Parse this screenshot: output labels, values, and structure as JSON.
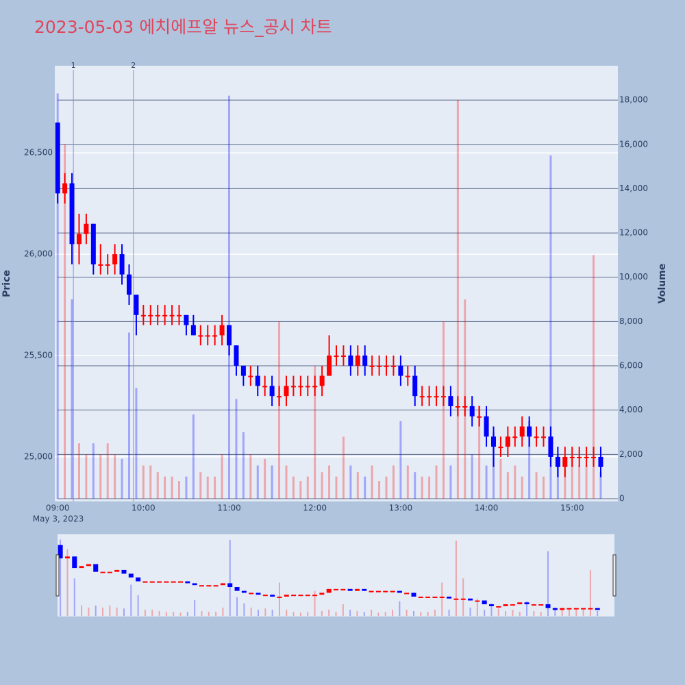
{
  "chart_data": {
    "type": "candlestick",
    "title": "2023-05-03 에치에프알 뉴스_공시 차트",
    "y_title": "Price",
    "y2_title": "Volume",
    "x_date_label": "May 3, 2023",
    "increasing_color": "#ff0000",
    "decreasing_color": "#0000ff",
    "x": [
      "2023-05-03 09:00",
      "2023-05-03 09:05",
      "2023-05-03 09:10",
      "2023-05-03 09:15",
      "2023-05-03 09:20",
      "2023-05-03 09:25",
      "2023-05-03 09:30",
      "2023-05-03 09:35",
      "2023-05-03 09:40",
      "2023-05-03 09:45",
      "2023-05-03 09:50",
      "2023-05-03 09:55",
      "2023-05-03 10:00",
      "2023-05-03 10:05",
      "2023-05-03 10:10",
      "2023-05-03 10:15",
      "2023-05-03 10:20",
      "2023-05-03 10:25",
      "2023-05-03 10:30",
      "2023-05-03 10:35",
      "2023-05-03 10:40",
      "2023-05-03 10:45",
      "2023-05-03 10:50",
      "2023-05-03 10:55",
      "2023-05-03 11:00",
      "2023-05-03 11:05",
      "2023-05-03 11:10",
      "2023-05-03 11:15",
      "2023-05-03 11:20",
      "2023-05-03 11:25",
      "2023-05-03 11:30",
      "2023-05-03 11:35",
      "2023-05-03 11:40",
      "2023-05-03 11:45",
      "2023-05-03 11:50",
      "2023-05-03 11:55",
      "2023-05-03 12:00",
      "2023-05-03 12:05",
      "2023-05-03 12:10",
      "2023-05-03 12:15",
      "2023-05-03 12:20",
      "2023-05-03 12:25",
      "2023-05-03 12:30",
      "2023-05-03 12:35",
      "2023-05-03 12:40",
      "2023-05-03 12:45",
      "2023-05-03 12:50",
      "2023-05-03 12:55",
      "2023-05-03 13:00",
      "2023-05-03 13:05",
      "2023-05-03 13:10",
      "2023-05-03 13:15",
      "2023-05-03 13:20",
      "2023-05-03 13:25",
      "2023-05-03 13:30",
      "2023-05-03 13:35",
      "2023-05-03 13:40",
      "2023-05-03 13:45",
      "2023-05-03 13:50",
      "2023-05-03 13:55",
      "2023-05-03 14:00",
      "2023-05-03 14:05",
      "2023-05-03 14:10",
      "2023-05-03 14:15",
      "2023-05-03 14:20",
      "2023-05-03 14:25",
      "2023-05-03 14:30",
      "2023-05-03 14:35",
      "2023-05-03 14:40",
      "2023-05-03 14:45",
      "2023-05-03 14:50",
      "2023-05-03 14:55",
      "2023-05-03 15:00",
      "2023-05-03 15:05",
      "2023-05-03 15:10",
      "2023-05-03 15:15",
      "2023-05-03 15:20"
    ],
    "open": [
      26650,
      26300,
      26350,
      26050,
      26100,
      26150,
      25950,
      25950,
      25950,
      26000,
      25900,
      25800,
      25700,
      25700,
      25700,
      25700,
      25700,
      25700,
      25700,
      25650,
      25600,
      25600,
      25600,
      25600,
      25650,
      25550,
      25450,
      25400,
      25400,
      25350,
      25350,
      25300,
      25300,
      25350,
      25350,
      25350,
      25350,
      25350,
      25400,
      25500,
      25500,
      25500,
      25450,
      25500,
      25450,
      25450,
      25450,
      25450,
      25450,
      25400,
      25400,
      25300,
      25300,
      25300,
      25300,
      25300,
      25250,
      25250,
      25250,
      25200,
      25200,
      25100,
      25050,
      25050,
      25100,
      25100,
      25150,
      25100,
      25100,
      25100,
      25000,
      24950,
      25000,
      25000,
      25000,
      25000,
      25000
    ],
    "high": [
      26650,
      26400,
      26400,
      26200,
      26200,
      26150,
      26050,
      26000,
      26050,
      26050,
      25950,
      25800,
      25750,
      25750,
      25750,
      25750,
      25750,
      25750,
      25700,
      25700,
      25650,
      25650,
      25650,
      25700,
      25650,
      25550,
      25450,
      25450,
      25450,
      25400,
      25400,
      25350,
      25400,
      25400,
      25400,
      25400,
      25400,
      25450,
      25600,
      25550,
      25550,
      25550,
      25550,
      25550,
      25500,
      25500,
      25500,
      25500,
      25500,
      25450,
      25450,
      25350,
      25350,
      25350,
      25350,
      25350,
      25300,
      25300,
      25300,
      25250,
      25250,
      25150,
      25100,
      25150,
      25150,
      25200,
      25200,
      25150,
      25150,
      25150,
      25050,
      25050,
      25050,
      25050,
      25050,
      25050,
      25050
    ],
    "low": [
      26250,
      26250,
      25950,
      25950,
      26050,
      25900,
      25900,
      25900,
      25900,
      25850,
      25750,
      25600,
      25650,
      25650,
      25650,
      25650,
      25650,
      25650,
      25600,
      25600,
      25550,
      25550,
      25550,
      25550,
      25500,
      25400,
      25350,
      25350,
      25300,
      25300,
      25250,
      25250,
      25250,
      25300,
      25300,
      25300,
      25300,
      25300,
      25400,
      25450,
      25450,
      25400,
      25400,
      25400,
      25400,
      25400,
      25400,
      25400,
      25350,
      25350,
      25250,
      25250,
      25250,
      25250,
      25250,
      25200,
      25200,
      25200,
      25150,
      25150,
      25050,
      24950,
      25000,
      25000,
      25050,
      25050,
      25050,
      25050,
      25050,
      24950,
      24900,
      24900,
      24950,
      24950,
      24950,
      24950,
      24900
    ],
    "close": [
      26300,
      26350,
      26050,
      26100,
      26150,
      25950,
      25950,
      25950,
      26000,
      25900,
      25800,
      25700,
      25700,
      25700,
      25700,
      25700,
      25700,
      25700,
      25650,
      25600,
      25600,
      25600,
      25600,
      25650,
      25550,
      25450,
      25400,
      25400,
      25350,
      25350,
      25300,
      25300,
      25350,
      25350,
      25350,
      25350,
      25350,
      25400,
      25500,
      25500,
      25500,
      25450,
      25500,
      25450,
      25450,
      25450,
      25450,
      25450,
      25400,
      25400,
      25300,
      25300,
      25300,
      25300,
      25300,
      25250,
      25250,
      25250,
      25200,
      25200,
      25100,
      25050,
      25050,
      25100,
      25100,
      25150,
      25100,
      25100,
      25100,
      25000,
      24950,
      25000,
      25000,
      25000,
      25000,
      25000,
      24950
    ],
    "volume": [
      18300,
      16000,
      9000,
      2500,
      2000,
      2500,
      2000,
      2500,
      2000,
      1800,
      7500,
      5000,
      1500,
      1500,
      1200,
      1000,
      1000,
      800,
      1000,
      3800,
      1200,
      1000,
      1000,
      2000,
      18200,
      4500,
      3000,
      2000,
      1500,
      1800,
      1500,
      8000,
      1500,
      1000,
      800,
      1000,
      6000,
      1200,
      1500,
      1000,
      2800,
      1500,
      1200,
      1000,
      1500,
      800,
      1000,
      1500,
      3500,
      1500,
      1200,
      1000,
      1000,
      1500,
      8000,
      1500,
      18000,
      9000,
      2000,
      4200,
      1500,
      3000,
      1800,
      1200,
      1500,
      1000,
      3500,
      1200,
      1000,
      15500,
      2000,
      1500,
      1800,
      1500,
      1500,
      11000,
      1200
    ],
    "xlim": [
      "2023-05-03 08:58",
      "2023-05-03 15:32"
    ],
    "xticks": [
      {
        "value": "2023-05-03 09:00",
        "label": "09:00"
      },
      {
        "value": "2023-05-03 10:00",
        "label": "10:00"
      },
      {
        "value": "2023-05-03 11:00",
        "label": "11:00"
      },
      {
        "value": "2023-05-03 12:00",
        "label": "12:00"
      },
      {
        "value": "2023-05-03 13:00",
        "label": "13:00"
      },
      {
        "value": "2023-05-03 14:00",
        "label": "14:00"
      },
      {
        "value": "2023-05-03 15:00",
        "label": "15:00"
      }
    ],
    "ylim": [
      24780,
      26930
    ],
    "yticks": [
      {
        "value": 25000,
        "label": "25,000"
      },
      {
        "value": 25500,
        "label": "25,500"
      },
      {
        "value": 26000,
        "label": "26,000"
      },
      {
        "value": 26500,
        "label": "26,500"
      }
    ],
    "y2lim": [
      -124,
      19550
    ],
    "y2ticks": [
      0,
      {
        "value": 2000,
        "label": "2,000"
      },
      {
        "value": 4000,
        "label": "4,000"
      },
      {
        "value": 6000,
        "label": "6,000"
      },
      {
        "value": 8000,
        "label": "8,000"
      },
      {
        "value": 10000,
        "label": "10,000"
      },
      {
        "value": 12000,
        "label": "12,000"
      },
      {
        "value": 14000,
        "label": "14,000"
      },
      {
        "value": 16000,
        "label": "16,000"
      },
      {
        "value": 18000,
        "label": "18,000"
      }
    ],
    "annotations": [
      {
        "x": "2023-05-03 09:11",
        "text": "1"
      },
      {
        "x": "2023-05-03 09:53",
        "text": "2"
      }
    ],
    "rangeslider": true
  }
}
